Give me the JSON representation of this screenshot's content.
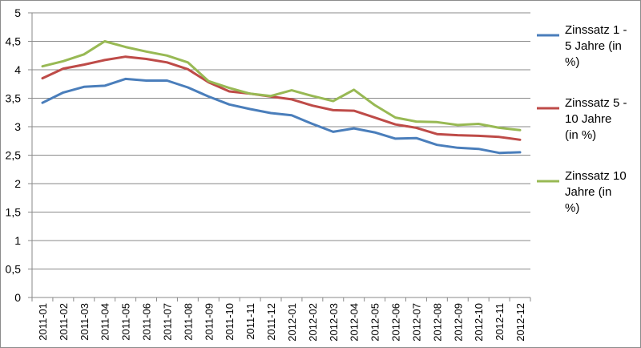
{
  "chart_data": {
    "type": "line",
    "categories": [
      "2011-01",
      "2011-02",
      "2011-03",
      "2011-04",
      "2011-05",
      "2011-06",
      "2011-07",
      "2011-08",
      "2011-09",
      "2011-10",
      "2011-11",
      "2011-12",
      "2012-01",
      "2012-02",
      "2012-03",
      "2012-04",
      "2012-05",
      "2012-06",
      "2012-07",
      "2012-08",
      "2012-09",
      "2012-10",
      "2012-11",
      "2012-12"
    ],
    "y_ticks": [
      "0",
      "0,5",
      "1",
      "1,5",
      "2",
      "2,5",
      "3",
      "3,5",
      "4",
      "4,5",
      "5"
    ],
    "ylim": [
      0,
      5
    ],
    "grid": "horizontal",
    "legend_position": "right",
    "series": [
      {
        "name": "Zinssatz 1 - 5 Jahre (in %)",
        "legend_lines": [
          "Zinssatz 1 -",
          "5 Jahre (in",
          "%)"
        ],
        "color": "#4a7ebb",
        "values": [
          3.42,
          3.6,
          3.7,
          3.72,
          3.84,
          3.81,
          3.81,
          3.69,
          3.53,
          3.39,
          3.31,
          3.24,
          3.2,
          3.05,
          2.91,
          2.97,
          2.9,
          2.79,
          2.8,
          2.68,
          2.63,
          2.61,
          2.54,
          2.55
        ]
      },
      {
        "name": "Zinssatz 5 - 10 Jahre (in %)",
        "legend_lines": [
          "Zinssatz 5 -",
          "10 Jahre",
          "(in %)"
        ],
        "color": "#be4b48",
        "values": [
          3.85,
          4.02,
          4.09,
          4.17,
          4.23,
          4.19,
          4.13,
          4.01,
          3.78,
          3.62,
          3.58,
          3.53,
          3.48,
          3.37,
          3.29,
          3.28,
          3.16,
          3.04,
          2.98,
          2.87,
          2.85,
          2.84,
          2.82,
          2.77
        ]
      },
      {
        "name": "Zinssatz 10 Jahre (in %)",
        "legend_lines": [
          "Zinssatz 10",
          "Jahre (in",
          "%)"
        ],
        "color": "#98b954",
        "values": [
          4.06,
          4.15,
          4.27,
          4.5,
          4.4,
          4.32,
          4.25,
          4.13,
          3.8,
          3.68,
          3.58,
          3.54,
          3.64,
          3.54,
          3.45,
          3.65,
          3.38,
          3.16,
          3.09,
          3.08,
          3.03,
          3.05,
          2.98,
          2.94
        ]
      }
    ]
  }
}
